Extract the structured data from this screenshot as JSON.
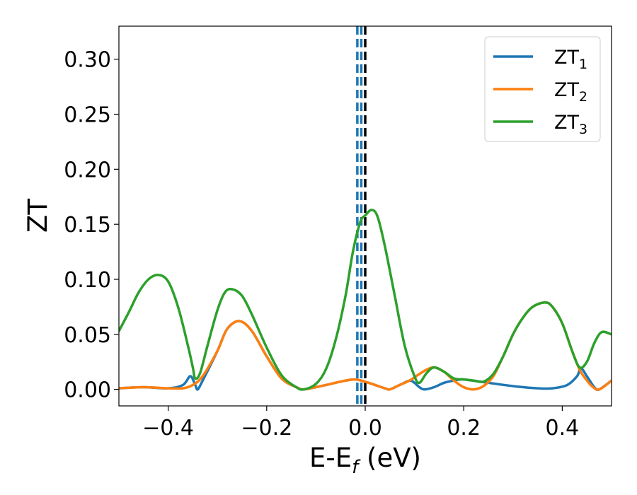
{
  "chart_data": {
    "type": "line",
    "title": "",
    "xlabel": {
      "main": "E-E",
      "sub": "f",
      "suffix": " (eV)"
    },
    "ylabel": "ZT",
    "xlim": [
      -0.5,
      0.5
    ],
    "ylim": [
      -0.015,
      0.33
    ],
    "xticks": [
      -0.4,
      -0.2,
      0.0,
      0.2,
      0.4
    ],
    "xtick_labels": [
      "−0.4",
      "−0.2",
      "0.0",
      "0.2",
      "0.4"
    ],
    "yticks": [
      0.0,
      0.05,
      0.1,
      0.15,
      0.2,
      0.25,
      0.3
    ],
    "ytick_labels": [
      "0.00",
      "0.05",
      "0.10",
      "0.15",
      "0.20",
      "0.25",
      "0.30"
    ],
    "grid": false,
    "legend_position": "top-right",
    "vlines": [
      {
        "x": -0.016,
        "style": "dashed",
        "color": "#1f77b4"
      },
      {
        "x": -0.008,
        "style": "dashed",
        "color": "#1f77b4"
      },
      {
        "x": 0.0,
        "style": "dashed",
        "color": "#000000"
      }
    ],
    "series": [
      {
        "name": "ZT",
        "name_sub": "1",
        "color": "#1f77b4",
        "points": [
          [
            -0.5,
            0.001
          ],
          [
            -0.45,
            0.002
          ],
          [
            -0.4,
            0.001
          ],
          [
            -0.37,
            0.004
          ],
          [
            -0.355,
            0.012
          ],
          [
            -0.345,
            0.004
          ],
          [
            -0.34,
            0.0
          ],
          [
            -0.33,
            0.008
          ],
          [
            -0.3,
            0.035
          ],
          [
            -0.28,
            0.055
          ],
          [
            -0.255,
            0.062
          ],
          [
            -0.23,
            0.053
          ],
          [
            -0.2,
            0.03
          ],
          [
            -0.17,
            0.01
          ],
          [
            -0.14,
            0.002
          ],
          [
            -0.125,
            0.0
          ],
          [
            -0.1,
            0.002
          ],
          [
            -0.07,
            0.005
          ],
          [
            -0.04,
            0.008
          ],
          [
            -0.02,
            0.009
          ],
          [
            0.0,
            0.007
          ],
          [
            0.02,
            0.004
          ],
          [
            0.04,
            0.001
          ],
          [
            0.05,
            0.0
          ],
          [
            0.07,
            0.004
          ],
          [
            0.09,
            0.008
          ],
          [
            0.1,
            0.006
          ],
          [
            0.11,
            0.002
          ],
          [
            0.12,
            0.0
          ],
          [
            0.14,
            0.002
          ],
          [
            0.16,
            0.006
          ],
          [
            0.18,
            0.008
          ],
          [
            0.2,
            0.009
          ],
          [
            0.25,
            0.006
          ],
          [
            0.3,
            0.003
          ],
          [
            0.35,
            0.001
          ],
          [
            0.38,
            0.001
          ],
          [
            0.41,
            0.004
          ],
          [
            0.43,
            0.012
          ],
          [
            0.438,
            0.019
          ],
          [
            0.45,
            0.012
          ],
          [
            0.465,
            0.002
          ],
          [
            0.475,
            0.0
          ],
          [
            0.5,
            0.008
          ]
        ]
      },
      {
        "name": "ZT",
        "name_sub": "2",
        "color": "#ff7f0e",
        "points": [
          [
            -0.5,
            0.001
          ],
          [
            -0.45,
            0.002
          ],
          [
            -0.4,
            0.001
          ],
          [
            -0.37,
            0.001
          ],
          [
            -0.35,
            0.004
          ],
          [
            -0.33,
            0.012
          ],
          [
            -0.3,
            0.035
          ],
          [
            -0.28,
            0.055
          ],
          [
            -0.255,
            0.062
          ],
          [
            -0.23,
            0.053
          ],
          [
            -0.2,
            0.03
          ],
          [
            -0.17,
            0.01
          ],
          [
            -0.14,
            0.002
          ],
          [
            -0.125,
            0.0
          ],
          [
            -0.1,
            0.002
          ],
          [
            -0.07,
            0.005
          ],
          [
            -0.04,
            0.008
          ],
          [
            -0.02,
            0.009
          ],
          [
            0.0,
            0.007
          ],
          [
            0.02,
            0.004
          ],
          [
            0.04,
            0.001
          ],
          [
            0.05,
            0.0
          ],
          [
            0.07,
            0.004
          ],
          [
            0.09,
            0.008
          ],
          [
            0.11,
            0.014
          ],
          [
            0.125,
            0.018
          ],
          [
            0.14,
            0.02
          ],
          [
            0.16,
            0.016
          ],
          [
            0.18,
            0.008
          ],
          [
            0.2,
            0.002
          ],
          [
            0.22,
            0.0
          ],
          [
            0.24,
            0.003
          ],
          [
            0.26,
            0.012
          ],
          [
            0.28,
            0.03
          ],
          [
            0.3,
            0.05
          ],
          [
            0.32,
            0.065
          ],
          [
            0.34,
            0.075
          ],
          [
            0.365,
            0.079
          ],
          [
            0.38,
            0.075
          ],
          [
            0.4,
            0.06
          ],
          [
            0.42,
            0.035
          ],
          [
            0.435,
            0.018
          ],
          [
            0.445,
            0.011
          ],
          [
            0.46,
            0.003
          ],
          [
            0.475,
            0.0
          ],
          [
            0.5,
            0.008
          ]
        ]
      },
      {
        "name": "ZT",
        "name_sub": "3",
        "color": "#2ca02c",
        "points": [
          [
            -0.5,
            0.053
          ],
          [
            -0.48,
            0.07
          ],
          [
            -0.46,
            0.088
          ],
          [
            -0.44,
            0.1
          ],
          [
            -0.42,
            0.104
          ],
          [
            -0.4,
            0.098
          ],
          [
            -0.38,
            0.075
          ],
          [
            -0.36,
            0.04
          ],
          [
            -0.35,
            0.02
          ],
          [
            -0.345,
            0.01
          ],
          [
            -0.335,
            0.015
          ],
          [
            -0.32,
            0.04
          ],
          [
            -0.3,
            0.072
          ],
          [
            -0.285,
            0.088
          ],
          [
            -0.27,
            0.091
          ],
          [
            -0.25,
            0.085
          ],
          [
            -0.23,
            0.068
          ],
          [
            -0.2,
            0.038
          ],
          [
            -0.17,
            0.013
          ],
          [
            -0.14,
            0.002
          ],
          [
            -0.125,
            0.0
          ],
          [
            -0.1,
            0.005
          ],
          [
            -0.08,
            0.018
          ],
          [
            -0.06,
            0.045
          ],
          [
            -0.04,
            0.085
          ],
          [
            -0.025,
            0.125
          ],
          [
            -0.01,
            0.152
          ],
          [
            0.0,
            0.158
          ],
          [
            0.013,
            0.163
          ],
          [
            0.025,
            0.157
          ],
          [
            0.04,
            0.13
          ],
          [
            0.06,
            0.085
          ],
          [
            0.08,
            0.04
          ],
          [
            0.1,
            0.012
          ],
          [
            0.11,
            0.006
          ],
          [
            0.125,
            0.015
          ],
          [
            0.14,
            0.02
          ],
          [
            0.16,
            0.016
          ],
          [
            0.18,
            0.01
          ],
          [
            0.2,
            0.009
          ],
          [
            0.22,
            0.008
          ],
          [
            0.24,
            0.007
          ],
          [
            0.26,
            0.014
          ],
          [
            0.28,
            0.03
          ],
          [
            0.3,
            0.05
          ],
          [
            0.32,
            0.065
          ],
          [
            0.34,
            0.075
          ],
          [
            0.365,
            0.079
          ],
          [
            0.38,
            0.075
          ],
          [
            0.4,
            0.06
          ],
          [
            0.42,
            0.035
          ],
          [
            0.435,
            0.02
          ],
          [
            0.45,
            0.025
          ],
          [
            0.465,
            0.042
          ],
          [
            0.48,
            0.052
          ],
          [
            0.5,
            0.05
          ]
        ]
      }
    ]
  }
}
